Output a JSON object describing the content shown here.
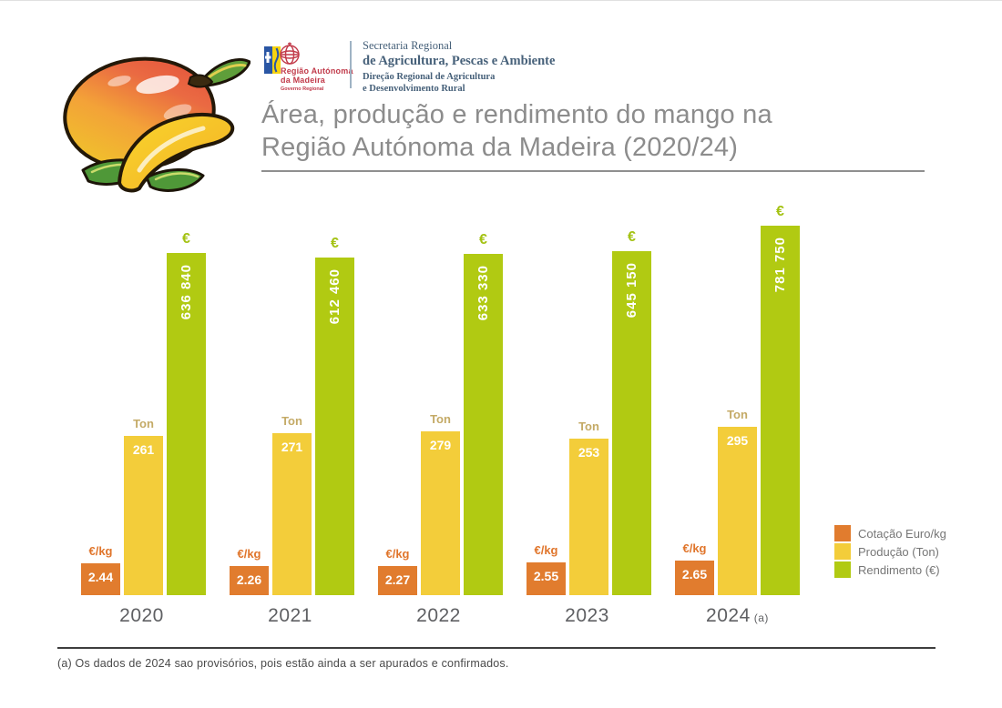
{
  "header": {
    "logo": {
      "region_line1": "Região Autónoma",
      "region_line2": "da Madeira",
      "governo": "Governo Regional",
      "secretariat_line1": "Secretaria Regional",
      "secretariat_line2": "de Agricultura, Pescas e Ambiente",
      "directorate_line1": "Direção Regional de Agricultura",
      "directorate_line2": "e Desenvolvimento Rural"
    },
    "title_line1": "Área, produção e rendimento do mango na",
    "title_line2": "Região Autónoma da Madeira (2020/24)"
  },
  "chart_data": {
    "type": "bar",
    "title": "Área, produção e rendimento do mango na Região Autónoma da Madeira (2020/24)",
    "categories": [
      "2020",
      "2021",
      "2022",
      "2023",
      "2024"
    ],
    "category_suffixes": [
      "",
      "",
      "",
      "",
      "(a)"
    ],
    "series": [
      {
        "name": "Cotação Euro/kg",
        "unit_label": "€/kg",
        "color": "#e17c2e",
        "values": [
          2.44,
          2.26,
          2.27,
          2.55,
          2.65
        ],
        "value_labels": [
          "2.44",
          "2.26",
          "2.27",
          "2.55",
          "2.65"
        ],
        "value_orientation": "horizontal"
      },
      {
        "name": "Produção (Ton)",
        "unit_label": "Ton",
        "color": "#f3cd3a",
        "values": [
          261,
          271,
          279,
          253,
          295
        ],
        "value_labels": [
          "261",
          "271",
          "279",
          "253",
          "295"
        ],
        "value_orientation": "horizontal"
      },
      {
        "name": "Rendimento (€)",
        "unit_label": "€",
        "color": "#b1ca12",
        "values": [
          636840,
          612460,
          633330,
          645150,
          781750
        ],
        "value_labels": [
          "636 840",
          "612 460",
          "633 330",
          "645 150",
          "781 750"
        ],
        "value_orientation": "vertical"
      }
    ],
    "legend": [
      "Cotação Euro/kg",
      "Produção (Ton)",
      "Rendimento (€)"
    ],
    "legend_position": "right",
    "grid": false,
    "y_axis_shown": false,
    "x_axis_line_shown": false
  },
  "footnote": "(a) Os dados de 2024 sao provisórios, pois estão ainda a ser apurados e confirmados.",
  "colors": {
    "cotacao_bar": "#e17c2e",
    "producao_bar": "#f3cd3a",
    "rendimento_bar": "#b1ca12",
    "unit_eur_kg_label": "#e0752b",
    "unit_ton_label": "#c4aa66",
    "unit_euro_label": "#a4c213",
    "title_text": "#8c8c8c",
    "year_label_text": "#5f6063",
    "legend_text": "#767676",
    "footnote_text": "#4a4a4a",
    "logo_red": "#c13a4a",
    "secretariat_text": "#47617a"
  }
}
